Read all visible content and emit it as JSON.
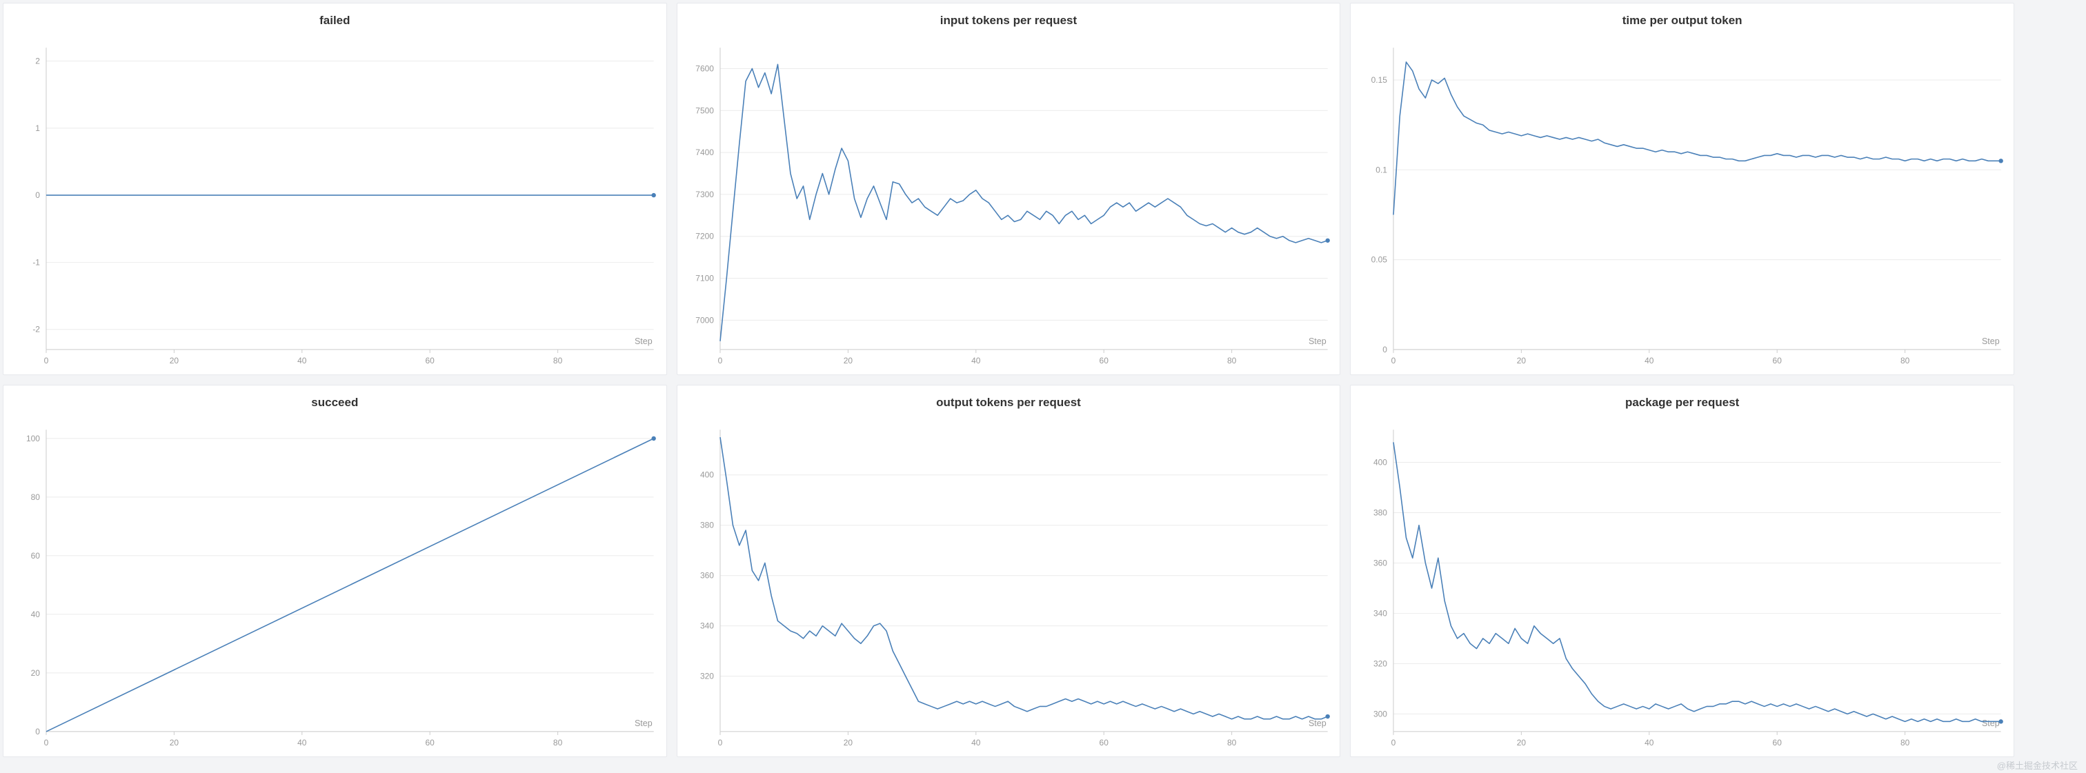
{
  "page": {
    "watermark": "@稀土掘金技术社区"
  },
  "style": {
    "line_color": "#4a80b8",
    "grid_color": "#ebebeb",
    "axis_color": "#cccccc",
    "tick_label_color": "#999999",
    "title_color": "#333333"
  },
  "chart_data": [
    {
      "type": "line",
      "title": "failed",
      "xlabel": "Step",
      "legend": "none",
      "grid": "horizontal",
      "xticks": [
        0,
        20,
        40,
        60,
        80
      ],
      "yticks": [
        -2,
        -1,
        0,
        1,
        2
      ],
      "xlim": [
        0,
        95
      ],
      "ylim": [
        -2.3,
        2.2
      ],
      "x": [
        0,
        95
      ],
      "values": [
        0,
        0
      ]
    },
    {
      "type": "line",
      "title": "input tokens per request",
      "xlabel": "Step",
      "legend": "none",
      "grid": "horizontal",
      "xticks": [
        0,
        20,
        40,
        60,
        80
      ],
      "yticks": [
        7000,
        7100,
        7200,
        7300,
        7400,
        7500,
        7600
      ],
      "xlim": [
        0,
        95
      ],
      "ylim": [
        6930,
        7650
      ],
      "values": [
        6950,
        7100,
        7260,
        7420,
        7570,
        7600,
        7555,
        7590,
        7540,
        7610,
        7480,
        7350,
        7290,
        7320,
        7240,
        7300,
        7350,
        7300,
        7360,
        7410,
        7380,
        7290,
        7245,
        7290,
        7320,
        7280,
        7240,
        7330,
        7325,
        7300,
        7280,
        7290,
        7270,
        7260,
        7250,
        7270,
        7290,
        7280,
        7285,
        7300,
        7310,
        7290,
        7280,
        7260,
        7240,
        7250,
        7235,
        7240,
        7260,
        7250,
        7240,
        7260,
        7250,
        7230,
        7250,
        7260,
        7240,
        7250,
        7230,
        7240,
        7250,
        7270,
        7280,
        7270,
        7280,
        7260,
        7270,
        7280,
        7270,
        7280,
        7290,
        7280,
        7270,
        7250,
        7240,
        7230,
        7225,
        7230,
        7220,
        7210,
        7220,
        7210,
        7205,
        7210,
        7220,
        7210,
        7200,
        7195,
        7200,
        7190,
        7185,
        7190,
        7195,
        7190,
        7185,
        7190
      ]
    },
    {
      "type": "line",
      "title": "time per output token",
      "xlabel": "Step",
      "legend": "none",
      "grid": "horizontal",
      "xticks": [
        0,
        20,
        40,
        60,
        80
      ],
      "yticks": [
        0,
        0.05,
        0.1,
        0.15
      ],
      "xlim": [
        0,
        95
      ],
      "ylim": [
        0,
        0.168
      ],
      "values": [
        0.075,
        0.13,
        0.16,
        0.155,
        0.145,
        0.14,
        0.15,
        0.148,
        0.151,
        0.142,
        0.135,
        0.13,
        0.128,
        0.126,
        0.125,
        0.122,
        0.121,
        0.12,
        0.121,
        0.12,
        0.119,
        0.12,
        0.119,
        0.118,
        0.119,
        0.118,
        0.117,
        0.118,
        0.117,
        0.118,
        0.117,
        0.116,
        0.117,
        0.115,
        0.114,
        0.113,
        0.114,
        0.113,
        0.112,
        0.112,
        0.111,
        0.11,
        0.111,
        0.11,
        0.11,
        0.109,
        0.11,
        0.109,
        0.108,
        0.108,
        0.107,
        0.107,
        0.106,
        0.106,
        0.105,
        0.105,
        0.106,
        0.107,
        0.108,
        0.108,
        0.109,
        0.108,
        0.108,
        0.107,
        0.108,
        0.108,
        0.107,
        0.108,
        0.108,
        0.107,
        0.108,
        0.107,
        0.107,
        0.106,
        0.107,
        0.106,
        0.106,
        0.107,
        0.106,
        0.106,
        0.105,
        0.106,
        0.106,
        0.105,
        0.106,
        0.105,
        0.106,
        0.106,
        0.105,
        0.106,
        0.105,
        0.105,
        0.106,
        0.105,
        0.105,
        0.105
      ]
    },
    {
      "type": "line",
      "title": "succeed",
      "xlabel": "Step",
      "legend": "none",
      "grid": "horizontal",
      "xticks": [
        0,
        20,
        40,
        60,
        80
      ],
      "yticks": [
        0,
        20,
        40,
        60,
        80,
        100
      ],
      "xlim": [
        0,
        95
      ],
      "ylim": [
        0,
        103
      ],
      "x": [
        0,
        95
      ],
      "values": [
        0,
        100
      ]
    },
    {
      "type": "line",
      "title": "output tokens per request",
      "xlabel": "Step",
      "legend": "none",
      "grid": "horizontal",
      "xticks": [
        0,
        20,
        40,
        60,
        80
      ],
      "yticks": [
        320,
        340,
        360,
        380,
        400
      ],
      "xlim": [
        0,
        95
      ],
      "ylim": [
        298,
        418
      ],
      "values": [
        415,
        398,
        380,
        372,
        378,
        362,
        358,
        365,
        352,
        342,
        340,
        338,
        337,
        335,
        338,
        336,
        340,
        338,
        336,
        341,
        338,
        335,
        333,
        336,
        340,
        341,
        338,
        330,
        325,
        320,
        315,
        310,
        309,
        308,
        307,
        308,
        309,
        310,
        309,
        310,
        309,
        310,
        309,
        308,
        309,
        310,
        308,
        307,
        306,
        307,
        308,
        308,
        309,
        310,
        311,
        310,
        311,
        310,
        309,
        310,
        309,
        310,
        309,
        310,
        309,
        308,
        309,
        308,
        307,
        308,
        307,
        306,
        307,
        306,
        305,
        306,
        305,
        304,
        305,
        304,
        303,
        304,
        303,
        303,
        304,
        303,
        303,
        304,
        303,
        303,
        304,
        303,
        304,
        303,
        303,
        304
      ]
    },
    {
      "type": "line",
      "title": "package per request",
      "xlabel": "Step",
      "legend": "none",
      "grid": "horizontal",
      "xticks": [
        0,
        20,
        40,
        60,
        80
      ],
      "yticks": [
        300,
        320,
        340,
        360,
        380,
        400
      ],
      "xlim": [
        0,
        95
      ],
      "ylim": [
        293,
        413
      ],
      "values": [
        408,
        390,
        370,
        362,
        375,
        360,
        350,
        362,
        345,
        335,
        330,
        332,
        328,
        326,
        330,
        328,
        332,
        330,
        328,
        334,
        330,
        328,
        335,
        332,
        330,
        328,
        330,
        322,
        318,
        315,
        312,
        308,
        305,
        303,
        302,
        303,
        304,
        303,
        302,
        303,
        302,
        304,
        303,
        302,
        303,
        304,
        302,
        301,
        302,
        303,
        303,
        304,
        304,
        305,
        305,
        304,
        305,
        304,
        303,
        304,
        303,
        304,
        303,
        304,
        303,
        302,
        303,
        302,
        301,
        302,
        301,
        300,
        301,
        300,
        299,
        300,
        299,
        298,
        299,
        298,
        297,
        298,
        297,
        298,
        297,
        298,
        297,
        297,
        298,
        297,
        297,
        298,
        297,
        297,
        297,
        297
      ]
    }
  ]
}
